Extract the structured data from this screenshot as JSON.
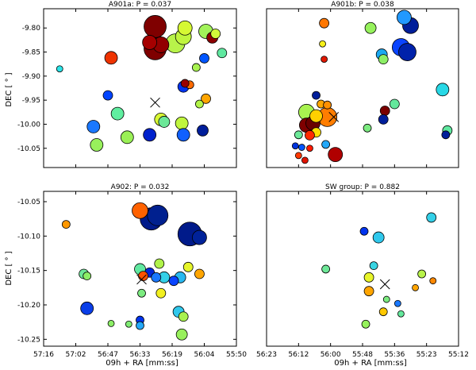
{
  "figure": {
    "xlabel": "09h + RA [mm:ss]",
    "ylabel": "DEC [ ° ]",
    "x_tick_labels": [
      "57:16",
      "57:02",
      "56:47",
      "56:33",
      "56:19",
      "56:04",
      "55:50",
      "56:23",
      "56:12",
      "56:00",
      "55:48",
      "55:36",
      "55:23",
      "55:12"
    ]
  },
  "chart_data": [
    {
      "type": "scatter",
      "title": "A901a: P = 0.037",
      "xlabel": "",
      "ylabel": "DEC [ ° ]",
      "x_ticks": [
        0,
        1,
        2,
        3,
        4,
        5,
        6
      ],
      "x_tick_labels": [],
      "xlim": [
        0,
        6
      ],
      "y_ticks": [
        -10.05,
        -10.0,
        -9.95,
        -9.9,
        -9.85,
        -9.8
      ],
      "y_tick_labels": [
        "-10.05",
        "-10.00",
        "-9.95",
        "-9.90",
        "-9.85",
        "-9.80"
      ],
      "ylim": [
        -10.09,
        -9.76
      ],
      "grid": false,
      "center_marker": {
        "x": 3.47,
        "y": -9.955
      },
      "points": [
        {
          "x": 3.47,
          "y": -9.797,
          "size": 14,
          "color": "#7f0000"
        },
        {
          "x": 3.47,
          "y": -9.843,
          "size": 14,
          "color": "#7f0000"
        },
        {
          "x": 3.65,
          "y": -9.835,
          "size": 10,
          "color": "#920000"
        },
        {
          "x": 3.3,
          "y": -9.83,
          "size": 9,
          "color": "#a50000"
        },
        {
          "x": 4.1,
          "y": -9.832,
          "size": 12,
          "color": "#b8f34a"
        },
        {
          "x": 4.35,
          "y": -9.818,
          "size": 10,
          "color": "#c0f53e"
        },
        {
          "x": 4.4,
          "y": -9.8,
          "size": 9,
          "color": "#d6f833"
        },
        {
          "x": 5.05,
          "y": -9.807,
          "size": 9,
          "color": "#a2f25a"
        },
        {
          "x": 5.35,
          "y": -9.812,
          "size": 6,
          "color": "#d2f83a"
        },
        {
          "x": 5.25,
          "y": -9.82,
          "size": 7,
          "color": "#8c0000"
        },
        {
          "x": 2.1,
          "y": -9.862,
          "size": 8,
          "color": "#ee3300"
        },
        {
          "x": 5.0,
          "y": -9.863,
          "size": 6,
          "color": "#0055ff"
        },
        {
          "x": 5.55,
          "y": -9.852,
          "size": 6,
          "color": "#60e8a0"
        },
        {
          "x": 0.5,
          "y": -9.885,
          "size": 4,
          "color": "#2be5e8"
        },
        {
          "x": 4.75,
          "y": -9.882,
          "size": 5,
          "color": "#a8f250"
        },
        {
          "x": 4.55,
          "y": -9.918,
          "size": 5,
          "color": "#ff6a00"
        },
        {
          "x": 4.35,
          "y": -9.922,
          "size": 7,
          "color": "#0033ee"
        },
        {
          "x": 4.4,
          "y": -9.915,
          "size": 5,
          "color": "#9a0000"
        },
        {
          "x": 5.05,
          "y": -9.947,
          "size": 6,
          "color": "#ffa500"
        },
        {
          "x": 4.85,
          "y": -9.958,
          "size": 5,
          "color": "#b2f448"
        },
        {
          "x": 2.0,
          "y": -9.94,
          "size": 6,
          "color": "#0044ff"
        },
        {
          "x": 2.3,
          "y": -9.978,
          "size": 8,
          "color": "#60eea0"
        },
        {
          "x": 1.55,
          "y": -10.005,
          "size": 8,
          "color": "#1a78ff"
        },
        {
          "x": 3.65,
          "y": -9.99,
          "size": 8,
          "color": "#d8f834"
        },
        {
          "x": 3.75,
          "y": -9.995,
          "size": 7,
          "color": "#6ce898"
        },
        {
          "x": 4.3,
          "y": -9.998,
          "size": 8,
          "color": "#c0f53e"
        },
        {
          "x": 4.95,
          "y": -10.013,
          "size": 7,
          "color": "#001e9a"
        },
        {
          "x": 4.35,
          "y": -10.022,
          "size": 8,
          "color": "#1060ff"
        },
        {
          "x": 3.3,
          "y": -10.022,
          "size": 8,
          "color": "#0022cc"
        },
        {
          "x": 2.6,
          "y": -10.027,
          "size": 8,
          "color": "#9af056"
        },
        {
          "x": 1.65,
          "y": -10.043,
          "size": 8,
          "color": "#98f05c"
        }
      ]
    },
    {
      "type": "scatter",
      "title": "A901b: P = 0.038",
      "xlabel": "",
      "ylabel": "",
      "x_ticks": [
        0,
        1,
        2,
        3,
        4,
        5,
        6
      ],
      "x_tick_labels": [],
      "xlim": [
        0,
        6
      ],
      "y_ticks": [],
      "y_tick_labels": [],
      "ylim": [
        -10.09,
        -9.76
      ],
      "grid": false,
      "center_marker": {
        "x": 2.1,
        "y": -9.985
      },
      "points": [
        {
          "x": 1.8,
          "y": -9.79,
          "size": 6,
          "color": "#ff7700"
        },
        {
          "x": 3.25,
          "y": -9.8,
          "size": 7,
          "color": "#96f25c"
        },
        {
          "x": 4.3,
          "y": -9.778,
          "size": 9,
          "color": "#2299ff"
        },
        {
          "x": 4.5,
          "y": -9.795,
          "size": 10,
          "color": "#001e9a"
        },
        {
          "x": 1.75,
          "y": -9.833,
          "size": 4,
          "color": "#f6f01a"
        },
        {
          "x": 4.2,
          "y": -9.84,
          "size": 11,
          "color": "#0a44ff"
        },
        {
          "x": 4.4,
          "y": -9.85,
          "size": 11,
          "color": "#0022aa"
        },
        {
          "x": 3.6,
          "y": -9.855,
          "size": 7,
          "color": "#1aa8f0"
        },
        {
          "x": 3.65,
          "y": -9.865,
          "size": 6,
          "color": "#8cee66"
        },
        {
          "x": 1.8,
          "y": -9.865,
          "size": 4,
          "color": "#e01800"
        },
        {
          "x": 5.5,
          "y": -9.928,
          "size": 8,
          "color": "#28d8e6"
        },
        {
          "x": 1.55,
          "y": -9.94,
          "size": 5,
          "color": "#001e9a"
        },
        {
          "x": 1.7,
          "y": -9.958,
          "size": 5,
          "color": "#ffa500"
        },
        {
          "x": 1.9,
          "y": -9.96,
          "size": 5,
          "color": "#ff9000"
        },
        {
          "x": 4.0,
          "y": -9.958,
          "size": 6,
          "color": "#64e89c"
        },
        {
          "x": 3.7,
          "y": -9.972,
          "size": 6,
          "color": "#7a0000"
        },
        {
          "x": 1.25,
          "y": -9.975,
          "size": 10,
          "color": "#a8f250"
        },
        {
          "x": 1.55,
          "y": -9.983,
          "size": 8,
          "color": "#ffd000"
        },
        {
          "x": 1.9,
          "y": -9.985,
          "size": 12,
          "color": "#ff7d00"
        },
        {
          "x": 3.65,
          "y": -9.99,
          "size": 6,
          "color": "#001e9a"
        },
        {
          "x": 1.25,
          "y": -10.002,
          "size": 9,
          "color": "#7f0000"
        },
        {
          "x": 1.45,
          "y": -9.998,
          "size": 9,
          "color": "#6a0000"
        },
        {
          "x": 1.55,
          "y": -10.017,
          "size": 6,
          "color": "#ffe000"
        },
        {
          "x": 1.35,
          "y": -10.023,
          "size": 6,
          "color": "#ff2a00"
        },
        {
          "x": 3.15,
          "y": -10.008,
          "size": 5,
          "color": "#7ceb80"
        },
        {
          "x": 1.0,
          "y": -10.022,
          "size": 5,
          "color": "#6ce898"
        },
        {
          "x": 1.85,
          "y": -10.042,
          "size": 5,
          "color": "#24a8f8"
        },
        {
          "x": 0.9,
          "y": -10.045,
          "size": 4,
          "color": "#0033dd"
        },
        {
          "x": 1.1,
          "y": -10.048,
          "size": 4,
          "color": "#0055ff"
        },
        {
          "x": 1.35,
          "y": -10.05,
          "size": 4,
          "color": "#ff1a00"
        },
        {
          "x": 2.15,
          "y": -10.063,
          "size": 9,
          "color": "#b00000"
        },
        {
          "x": 1.0,
          "y": -10.065,
          "size": 4,
          "color": "#ff3a00"
        },
        {
          "x": 1.2,
          "y": -10.075,
          "size": 4,
          "color": "#e01400"
        },
        {
          "x": 5.65,
          "y": -10.013,
          "size": 6,
          "color": "#60e8a0"
        },
        {
          "x": 5.6,
          "y": -10.022,
          "size": 5,
          "color": "#001e9a"
        }
      ]
    },
    {
      "type": "scatter",
      "title": "A902: P = 0.032",
      "xlabel": "09h + RA [mm:ss]",
      "ylabel": "DEC [ ° ]",
      "x_ticks": [
        0,
        1,
        2,
        3,
        4,
        5,
        6
      ],
      "x_tick_labels": [
        "57:16",
        "57:02",
        "56:47",
        "56:33",
        "56:19",
        "56:04",
        "55:50"
      ],
      "xlim": [
        0,
        6
      ],
      "y_ticks": [
        -10.25,
        -10.2,
        -10.15,
        -10.1,
        -10.05
      ],
      "y_tick_labels": [
        "-10.25",
        "-10.20",
        "-10.15",
        "-10.10",
        "-10.05"
      ],
      "ylim": [
        -10.26,
        -10.035
      ],
      "grid": false,
      "center_marker": {
        "x": 3.05,
        "y": -10.163
      },
      "points": [
        {
          "x": 3.0,
          "y": -10.063,
          "size": 10,
          "color": "#ff6200"
        },
        {
          "x": 3.35,
          "y": -10.075,
          "size": 14,
          "color": "#001a8a"
        },
        {
          "x": 3.55,
          "y": -10.07,
          "size": 13,
          "color": "#00208f"
        },
        {
          "x": 4.55,
          "y": -10.097,
          "size": 15,
          "color": "#001a8a"
        },
        {
          "x": 4.85,
          "y": -10.102,
          "size": 9,
          "color": "#002299"
        },
        {
          "x": 0.7,
          "y": -10.083,
          "size": 5,
          "color": "#ff9800"
        },
        {
          "x": 3.6,
          "y": -10.14,
          "size": 6,
          "color": "#b0f34a"
        },
        {
          "x": 4.5,
          "y": -10.145,
          "size": 6,
          "color": "#e6f52a"
        },
        {
          "x": 3.0,
          "y": -10.148,
          "size": 7,
          "color": "#60e8a0"
        },
        {
          "x": 3.3,
          "y": -10.153,
          "size": 6,
          "color": "#0028d8"
        },
        {
          "x": 4.85,
          "y": -10.155,
          "size": 6,
          "color": "#ffa500"
        },
        {
          "x": 1.25,
          "y": -10.155,
          "size": 6,
          "color": "#6ee898"
        },
        {
          "x": 1.35,
          "y": -10.158,
          "size": 5,
          "color": "#8cee66"
        },
        {
          "x": 3.1,
          "y": -10.158,
          "size": 6,
          "color": "#ff5200"
        },
        {
          "x": 3.5,
          "y": -10.16,
          "size": 6,
          "color": "#1a78ff"
        },
        {
          "x": 3.75,
          "y": -10.16,
          "size": 7,
          "color": "#34d0e8"
        },
        {
          "x": 4.25,
          "y": -10.16,
          "size": 7,
          "color": "#28b8f0"
        },
        {
          "x": 4.05,
          "y": -10.165,
          "size": 6,
          "color": "#0a44ff"
        },
        {
          "x": 3.05,
          "y": -10.183,
          "size": 5,
          "color": "#7ceb80"
        },
        {
          "x": 3.65,
          "y": -10.183,
          "size": 6,
          "color": "#f2f020"
        },
        {
          "x": 1.35,
          "y": -10.205,
          "size": 8,
          "color": "#0a3ee8"
        },
        {
          "x": 4.2,
          "y": -10.21,
          "size": 7,
          "color": "#30c8ec"
        },
        {
          "x": 4.35,
          "y": -10.217,
          "size": 6,
          "color": "#a8f250"
        },
        {
          "x": 3.0,
          "y": -10.222,
          "size": 5,
          "color": "#0033ee"
        },
        {
          "x": 2.1,
          "y": -10.227,
          "size": 4,
          "color": "#8cee66"
        },
        {
          "x": 2.65,
          "y": -10.228,
          "size": 4,
          "color": "#80ec74"
        },
        {
          "x": 3.0,
          "y": -10.23,
          "size": 5,
          "color": "#24a8f8"
        },
        {
          "x": 4.3,
          "y": -10.243,
          "size": 7,
          "color": "#98f05c"
        }
      ]
    },
    {
      "type": "scatter",
      "title": "SW group: P = 0.882",
      "xlabel": "09h + RA [mm:ss]",
      "ylabel": "",
      "x_ticks": [
        0,
        1,
        2,
        3,
        4,
        5,
        6
      ],
      "x_tick_labels": [
        "56:23",
        "56:12",
        "56:00",
        "55:48",
        "55:36",
        "55:23",
        "55:12"
      ],
      "xlim": [
        0,
        6
      ],
      "y_ticks": [],
      "y_tick_labels": [],
      "ylim": [
        -10.26,
        -10.035
      ],
      "grid": false,
      "center_marker": {
        "x": 3.7,
        "y": -10.17
      },
      "points": [
        {
          "x": 5.15,
          "y": -10.073,
          "size": 6,
          "color": "#34d0e8"
        },
        {
          "x": 3.05,
          "y": -10.093,
          "size": 5,
          "color": "#0033ee"
        },
        {
          "x": 3.5,
          "y": -10.102,
          "size": 7,
          "color": "#30c8ec"
        },
        {
          "x": 3.35,
          "y": -10.143,
          "size": 5,
          "color": "#38d4e2"
        },
        {
          "x": 1.85,
          "y": -10.148,
          "size": 5,
          "color": "#6ee898"
        },
        {
          "x": 3.2,
          "y": -10.16,
          "size": 6,
          "color": "#e8f52a"
        },
        {
          "x": 4.85,
          "y": -10.155,
          "size": 5,
          "color": "#b8f34a"
        },
        {
          "x": 5.2,
          "y": -10.165,
          "size": 4,
          "color": "#ff8800"
        },
        {
          "x": 4.65,
          "y": -10.175,
          "size": 4,
          "color": "#ffa500"
        },
        {
          "x": 3.2,
          "y": -10.18,
          "size": 6,
          "color": "#ffa500"
        },
        {
          "x": 3.75,
          "y": -10.192,
          "size": 4,
          "color": "#7ceb80"
        },
        {
          "x": 4.1,
          "y": -10.198,
          "size": 4,
          "color": "#1a78ff"
        },
        {
          "x": 3.65,
          "y": -10.21,
          "size": 5,
          "color": "#ffc800"
        },
        {
          "x": 4.2,
          "y": -10.213,
          "size": 4,
          "color": "#64e89c"
        },
        {
          "x": 3.1,
          "y": -10.228,
          "size": 5,
          "color": "#96f25c"
        }
      ]
    }
  ]
}
